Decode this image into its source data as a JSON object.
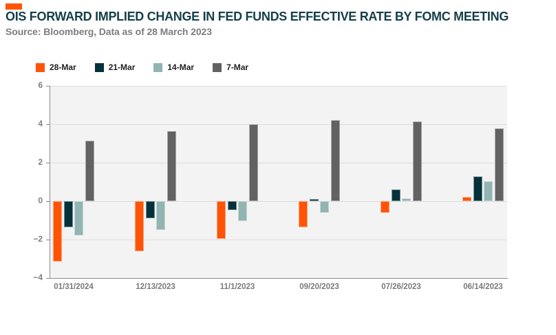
{
  "page": {
    "title": "OIS FORWARD IMPLIED CHANGE IN FED FUNDS EFFECTIVE RATE BY FOMC MEETING",
    "subtitle": "Source: Bloomberg, Data as of 28 March 2023",
    "accent_color": "#ff5405",
    "title_color": "#143f4a",
    "subtitle_color": "#7d7d7d"
  },
  "chart_data": {
    "type": "bar",
    "title": "OIS FORWARD IMPLIED CHANGE IN FED FUNDS EFFECTIVE RATE BY FOMC MEETING",
    "categories": [
      "01/31/2024",
      "12/13/2023",
      "11/1/2023",
      "09/20/2023",
      "07/26/2023",
      "06/14/2023"
    ],
    "series": [
      {
        "name": "28-Mar",
        "color": "#ff5405",
        "values": [
          -3.15,
          -2.6,
          -1.95,
          -1.35,
          -0.6,
          0.2
        ]
      },
      {
        "name": "21-Mar",
        "color": "#04323c",
        "values": [
          -1.35,
          -0.9,
          -0.45,
          0.1,
          0.6,
          1.3
        ]
      },
      {
        "name": "14-Mar",
        "color": "#92b4b2",
        "values": [
          -1.8,
          -1.5,
          -1.05,
          -0.6,
          0.15,
          1.05
        ]
      },
      {
        "name": "7-Mar",
        "color": "#626262",
        "values": [
          3.15,
          3.65,
          4.0,
          4.2,
          4.15,
          3.8
        ]
      }
    ],
    "xlabel": "",
    "ylabel": "",
    "ylim": [
      -4,
      6
    ],
    "yticks": [
      6,
      4,
      2,
      0,
      -2,
      -4
    ],
    "grid": true,
    "legend_position": "top-left",
    "style": {
      "plot_bg": "#f3f3f3",
      "gridline_color": "#dcdcdc",
      "axis_color": "#8c8c8c",
      "tick_label_color": "#7f7f7f",
      "x_label_color": "#7a7a7a"
    }
  }
}
